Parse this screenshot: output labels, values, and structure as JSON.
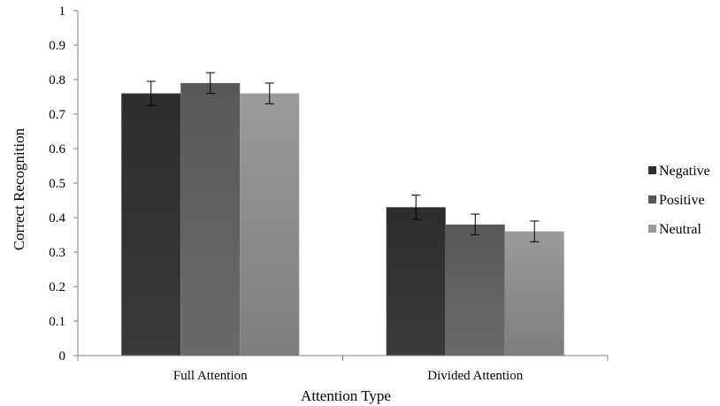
{
  "chart_data": {
    "type": "bar",
    "xlabel": "Attention Type",
    "ylabel": "Correct Recognition",
    "ylim": [
      0,
      1
    ],
    "yticks": [
      "0",
      "0.1",
      "0.2",
      "0.3",
      "0.4",
      "0.5",
      "0.6",
      "0.7",
      "0.8",
      "0.9",
      "1"
    ],
    "categories": [
      "Full Attention",
      "Divided Attention"
    ],
    "series": [
      {
        "name": "Negative",
        "color": "#2e2e2e",
        "values": [
          0.76,
          0.43
        ],
        "errors": [
          0.035,
          0.035
        ]
      },
      {
        "name": "Positive",
        "color": "#585858",
        "values": [
          0.79,
          0.38
        ],
        "errors": [
          0.03,
          0.03
        ]
      },
      {
        "name": "Neutral",
        "color": "#9a9a9a",
        "values": [
          0.76,
          0.36
        ],
        "errors": [
          0.03,
          0.03
        ]
      }
    ],
    "grid": false,
    "legend_position": "right"
  }
}
